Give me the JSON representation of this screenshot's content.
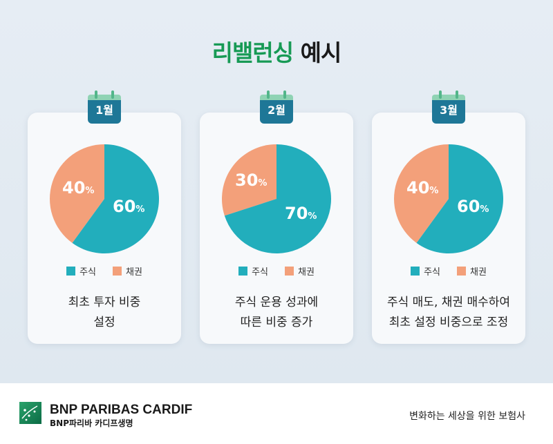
{
  "title": {
    "highlight": "리밸런싱",
    "rest": "예시"
  },
  "legend": {
    "stock": "주식",
    "bond": "채권"
  },
  "colors": {
    "stock": "#22aebc",
    "bond": "#f3a07a"
  },
  "cards": [
    {
      "month": "1월",
      "stock_pct": "60",
      "bond_pct": "40",
      "unit": "%",
      "stock_share": 60,
      "desc1": "최초 투자 비중",
      "desc2": "설정"
    },
    {
      "month": "2월",
      "stock_pct": "70",
      "bond_pct": "30",
      "unit": "%",
      "stock_share": 70,
      "desc1": "주식 운용 성과에",
      "desc2": "따른 비중 증가"
    },
    {
      "month": "3월",
      "stock_pct": "60",
      "bond_pct": "40",
      "unit": "%",
      "stock_share": 60,
      "desc1": "주식 매도, 채권 매수하여",
      "desc2": "최초 설정 비중으로 조정"
    }
  ],
  "footer": {
    "brand": "BNP PARIBAS CARDIF",
    "brand_sub": "BNP파리바 카디프생명",
    "tagline": "변화하는 세상을 위한 보험사"
  }
}
